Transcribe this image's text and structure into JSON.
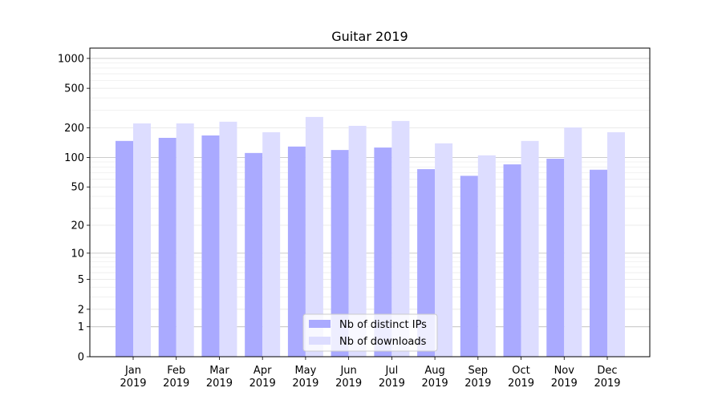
{
  "chart_data": {
    "type": "bar",
    "title": "Guitar 2019",
    "xlabel": "",
    "ylabel": "",
    "yscale": "log10(1+y)",
    "ylim": [
      0,
      1270
    ],
    "yticks": [
      0,
      1,
      2,
      5,
      10,
      20,
      50,
      100,
      200,
      500,
      1000
    ],
    "grid": true,
    "legend_placement": "lower center",
    "categories": [
      "Jan\n2019",
      "Feb\n2019",
      "Mar\n2019",
      "Apr\n2019",
      "May\n2019",
      "Jun\n2019",
      "Jul\n2019",
      "Aug\n2019",
      "Sep\n2019",
      "Oct\n2019",
      "Nov\n2019",
      "Dec\n2019"
    ],
    "series": [
      {
        "name": "Nb of distinct IPs",
        "color": "#aaaaff",
        "values": [
          147,
          158,
          167,
          111,
          129,
          119,
          126,
          76,
          65,
          85,
          97,
          75
        ]
      },
      {
        "name": "Nb of downloads",
        "color": "#ddddff",
        "values": [
          221,
          221,
          230,
          180,
          257,
          209,
          234,
          139,
          105,
          147,
          201,
          180
        ]
      }
    ]
  }
}
